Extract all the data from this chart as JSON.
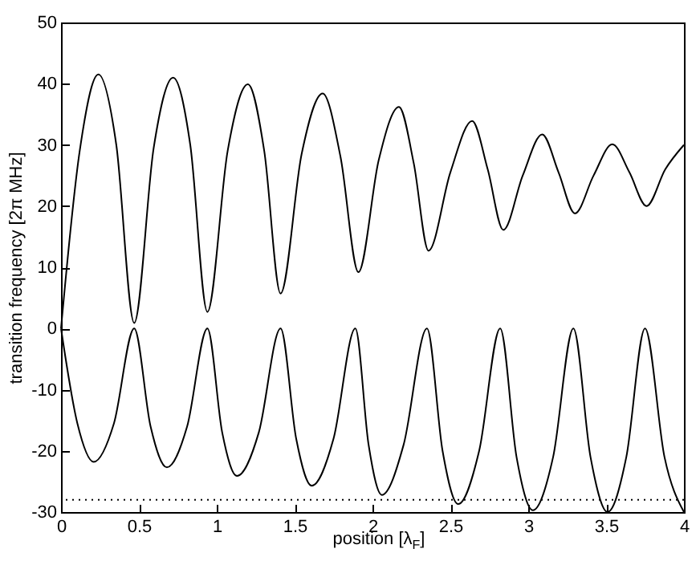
{
  "chart_data": {
    "type": "line",
    "xlabel": "position [λ$_{F}$]",
    "ylabel": "transition frequency [2π MHz]",
    "xlim": [
      0,
      4
    ],
    "xticks": [
      0,
      0.5,
      1,
      1.5,
      2,
      2.5,
      3,
      3.5,
      4
    ],
    "ylim": [
      -30,
      50
    ],
    "yticks": [
      -30,
      -20,
      -10,
      0,
      10,
      20,
      30,
      40,
      50
    ],
    "grid": false,
    "marker": "none",
    "line_style": "solid",
    "series": [
      {
        "color": "#000000",
        "x": [
          0,
          0.12,
          0.24,
          0.355,
          0.47,
          0.595,
          0.72,
          0.83,
          0.94,
          1.07,
          1.2,
          1.305,
          1.41,
          1.545,
          1.68,
          1.795,
          1.91,
          2.04,
          2.17,
          2.265,
          2.36,
          2.5,
          2.64,
          2.74,
          2.84,
          2.965,
          3.09,
          3.195,
          3.3,
          3.42,
          3.54,
          3.65,
          3.76,
          3.88,
          4
        ],
        "values": [
          0,
          29,
          41.5,
          30,
          0.9,
          29.5,
          41,
          30,
          2.7,
          29,
          39.9,
          29,
          5.7,
          28.5,
          38.4,
          28,
          9.2,
          27.5,
          36.2,
          27,
          12.7,
          25.5,
          33.9,
          26,
          16.1,
          25,
          31.7,
          25.5,
          18.8,
          25,
          30.1,
          25.5,
          20,
          26,
          30
        ]
      },
      {
        "color": "#000000",
        "x": [
          0,
          0.105,
          0.21,
          0.34,
          0.47,
          0.575,
          0.68,
          0.81,
          0.94,
          1.035,
          1.13,
          1.27,
          1.41,
          1.51,
          1.61,
          1.75,
          1.89,
          1.975,
          2.06,
          2.2,
          2.35,
          2.45,
          2.55,
          2.685,
          2.82,
          2.925,
          3.03,
          3.16,
          3.29,
          3.4,
          3.51,
          3.63,
          3.75,
          3.875,
          4
        ],
        "values": [
          0,
          -15.5,
          -21.8,
          -15.5,
          0,
          -16,
          -22.7,
          -16,
          0,
          -17,
          -24.1,
          -17,
          0,
          -18,
          -25.7,
          -18,
          0,
          -19,
          -27.2,
          -19,
          0,
          -20,
          -28.7,
          -20,
          0,
          -21,
          -29.7,
          -21,
          0,
          -21,
          -30,
          -21,
          0,
          -21,
          -30
        ]
      }
    ],
    "ref_lines": [
      {
        "axis": "y",
        "value": -28,
        "color": "#000000",
        "line_style": "dotted"
      }
    ]
  }
}
